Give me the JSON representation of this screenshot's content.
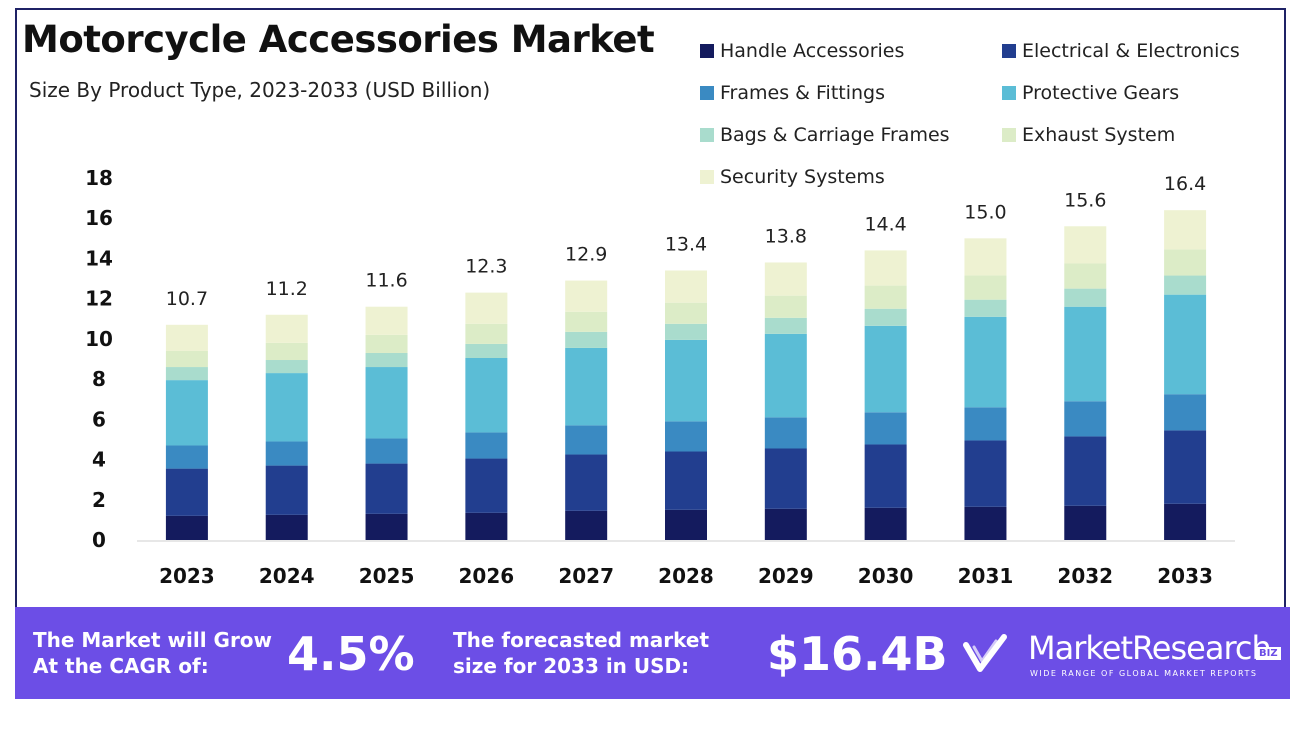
{
  "chart_data": {
    "type": "bar",
    "stacked": true,
    "title": "Motorcycle Accessories Market",
    "subtitle": "Size By Product Type, 2023-2033 (USD Billion)",
    "categories": [
      "2023",
      "2024",
      "2025",
      "2026",
      "2027",
      "2028",
      "2029",
      "2030",
      "2031",
      "2032",
      "2033"
    ],
    "totals": [
      "10.7",
      "11.2",
      "11.6",
      "12.3",
      "12.9",
      "13.4",
      "13.8",
      "14.4",
      "15.0",
      "15.6",
      "16.4"
    ],
    "ylim": [
      0,
      18
    ],
    "yticks": [
      0,
      2,
      4,
      6,
      8,
      10,
      12,
      14,
      16,
      18
    ],
    "ytick_labels": [
      "0",
      "2",
      "4",
      "6",
      "8",
      "10",
      "12",
      "14",
      "16",
      "18"
    ],
    "legend_position": "top-right",
    "series": [
      {
        "name": "Handle Accessories",
        "color": "#141b5e",
        "values": [
          1.2,
          1.25,
          1.3,
          1.35,
          1.45,
          1.5,
          1.55,
          1.6,
          1.65,
          1.7,
          1.8
        ]
      },
      {
        "name": "Electrical & Electronics",
        "color": "#223e8f",
        "values": [
          2.35,
          2.45,
          2.5,
          2.7,
          2.8,
          2.9,
          3.0,
          3.15,
          3.3,
          3.45,
          3.65
        ]
      },
      {
        "name": "Frames & Fittings",
        "color": "#3a8ac2",
        "values": [
          1.15,
          1.2,
          1.25,
          1.3,
          1.45,
          1.5,
          1.55,
          1.6,
          1.65,
          1.75,
          1.8
        ]
      },
      {
        "name": "Protective Gears",
        "color": "#5bbdd6",
        "values": [
          3.25,
          3.4,
          3.55,
          3.7,
          3.85,
          4.05,
          4.15,
          4.3,
          4.5,
          4.7,
          4.95
        ]
      },
      {
        "name": "Bags & Carriage Frames",
        "color": "#a9dccd",
        "values": [
          0.65,
          0.65,
          0.7,
          0.7,
          0.8,
          0.8,
          0.8,
          0.85,
          0.85,
          0.9,
          0.95
        ]
      },
      {
        "name": "Exhaust System",
        "color": "#dcecc7",
        "values": [
          0.8,
          0.85,
          0.9,
          1.0,
          1.0,
          1.05,
          1.1,
          1.15,
          1.2,
          1.25,
          1.3
        ]
      },
      {
        "name": "Security Systems",
        "color": "#eef2d2",
        "values": [
          1.3,
          1.4,
          1.4,
          1.55,
          1.55,
          1.6,
          1.65,
          1.75,
          1.85,
          1.85,
          1.95
        ]
      }
    ]
  },
  "footer": {
    "cagr_label": "The Market will Grow At the CAGR of:",
    "cagr_line1": "The Market will Grow",
    "cagr_line2": "At the CAGR of:",
    "cagr_value": "4.5%",
    "forecast_line1": "The forecasted market",
    "forecast_line2": "size for 2033 in USD:",
    "forecast_value": "$16.4B",
    "brand_name": "MarketResearch",
    "brand_badge": "BIZ",
    "brand_tagline": "WIDE RANGE OF GLOBAL MARKET REPORTS",
    "bg_color": "#6c4ee6"
  }
}
